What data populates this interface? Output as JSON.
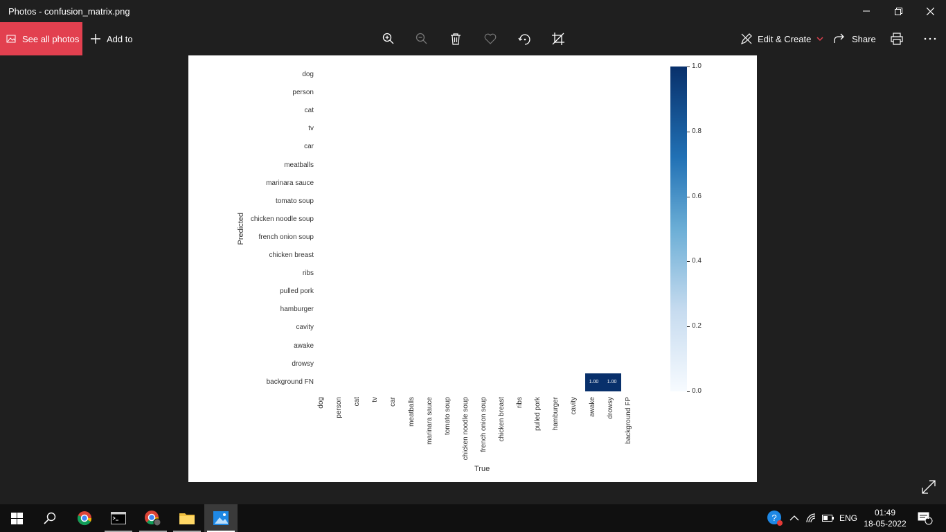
{
  "window": {
    "title": "Photos - confusion_matrix.png"
  },
  "toolbar": {
    "see_all_label": "See all photos",
    "add_to_label": "Add to",
    "edit_create_label": "Edit & Create",
    "share_label": "Share",
    "accent": "#e2404f"
  },
  "chart_data": {
    "type": "heatmap",
    "xlabel": "True",
    "ylabel": "Predicted",
    "y_categories": [
      "dog",
      "person",
      "cat",
      "tv",
      "car",
      "meatballs",
      "marinara sauce",
      "tomato soup",
      "chicken noodle soup",
      "french onion soup",
      "chicken breast",
      "ribs",
      "pulled pork",
      "hamburger",
      "cavity",
      "awake",
      "drowsy",
      "background FN"
    ],
    "x_categories": [
      "dog",
      "person",
      "cat",
      "tv",
      "car",
      "meatballs",
      "marinara sauce",
      "tomato soup",
      "chicken noodle soup",
      "french onion soup",
      "chicken breast",
      "ribs",
      "pulled pork",
      "hamburger",
      "cavity",
      "awake",
      "drowsy",
      "background FP"
    ],
    "cells": [
      {
        "row": "background FN",
        "col": "awake",
        "value": 1.0,
        "label": "1.00"
      },
      {
        "row": "background FN",
        "col": "drowsy",
        "value": 1.0,
        "label": "1.00"
      }
    ],
    "colorbar": {
      "range": [
        0,
        1
      ],
      "ticks": [
        "1.0",
        "0.8",
        "0.6",
        "0.4",
        "0.2",
        "0.0"
      ],
      "colormap": "Blues"
    }
  },
  "taskbar": {
    "language": "ENG",
    "time": "01:49",
    "date": "18-05-2022",
    "notification_count": "1"
  }
}
